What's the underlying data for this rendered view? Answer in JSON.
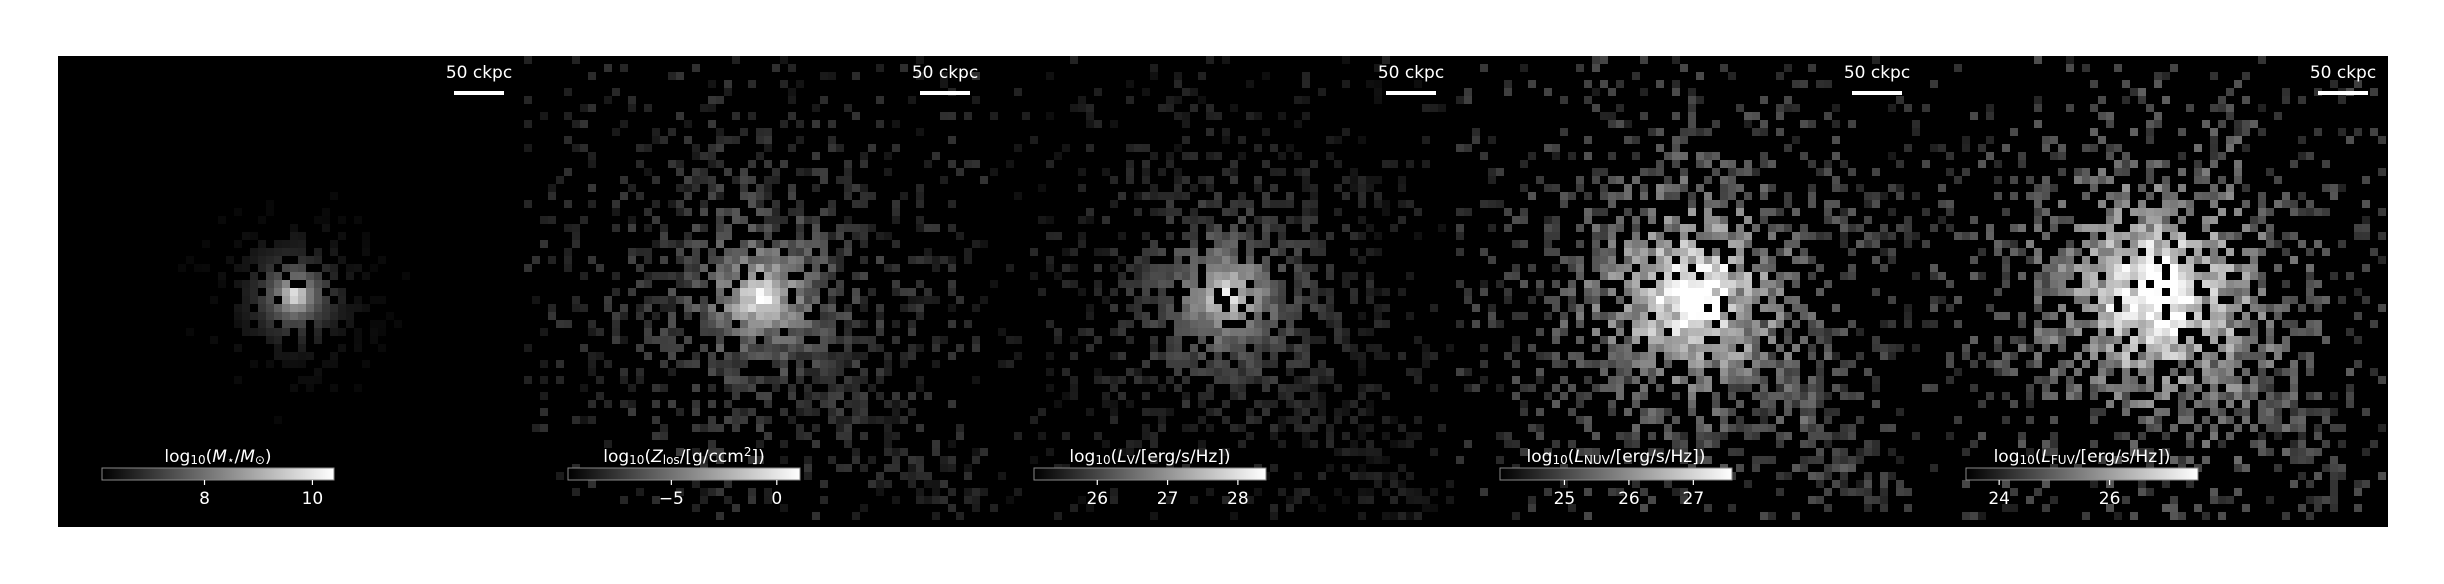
{
  "figure": {
    "panels": [
      {
        "scale_label": "50 ckpc",
        "colorbar": {
          "label": [
            {
              "text": "log"
            },
            {
              "sub": "10"
            },
            {
              "text": "("
            },
            {
              "it": "M"
            },
            {
              "sub": "⋆"
            },
            {
              "text": "/"
            },
            {
              "it": "M"
            },
            {
              "sub": "⊙"
            },
            {
              "text": ")"
            }
          ],
          "lim": [
            6.1,
            10.4
          ],
          "ticks": [
            8,
            10
          ]
        }
      },
      {
        "scale_label": "50 ckpc",
        "colorbar": {
          "label": [
            {
              "text": "log"
            },
            {
              "sub": "10"
            },
            {
              "text": "("
            },
            {
              "it": "Z"
            },
            {
              "sub": "los"
            },
            {
              "text": "/[g/ccm"
            },
            {
              "sup": "2"
            },
            {
              "text": "])"
            }
          ],
          "lim": [
            -9.9,
            1.1
          ],
          "ticks": [
            {
              "value": -5,
              "label": "−5"
            },
            0
          ]
        }
      },
      {
        "scale_label": "50 ckpc",
        "colorbar": {
          "label": [
            {
              "text": "log"
            },
            {
              "sub": "10"
            },
            {
              "text": "("
            },
            {
              "it": "L"
            },
            {
              "sub": "V"
            },
            {
              "text": "/[erg/s/Hz])"
            }
          ],
          "lim": [
            25.1,
            28.4
          ],
          "ticks": [
            26,
            27,
            28
          ]
        }
      },
      {
        "scale_label": "50 ckpc",
        "colorbar": {
          "label": [
            {
              "text": "log"
            },
            {
              "sub": "10"
            },
            {
              "text": "("
            },
            {
              "it": "L"
            },
            {
              "sub": "NUV"
            },
            {
              "text": "/[erg/s/Hz])"
            }
          ],
          "lim": [
            24.0,
            27.6
          ],
          "ticks": [
            25,
            26,
            27
          ]
        }
      },
      {
        "scale_label": "50 ckpc",
        "colorbar": {
          "label": [
            {
              "text": "log"
            },
            {
              "sub": "10"
            },
            {
              "text": "("
            },
            {
              "it": "L"
            },
            {
              "sub": "FUV"
            },
            {
              "text": "/[erg/s/Hz])"
            }
          ],
          "lim": [
            23.4,
            27.6
          ],
          "ticks": [
            24,
            26
          ]
        }
      }
    ]
  }
}
